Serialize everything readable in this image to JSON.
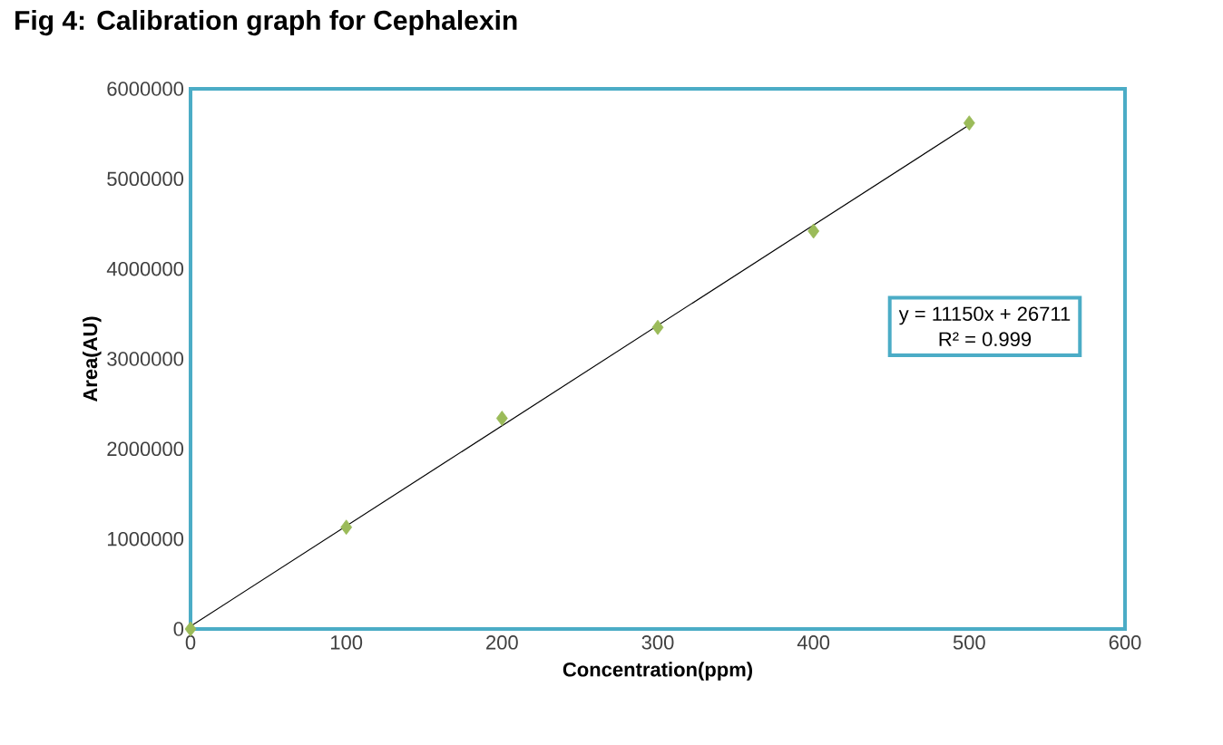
{
  "chart_data": {
    "type": "scatter",
    "title": "Fig 4: Calibration graph for Cephalexin",
    "xlabel": "Concentration(ppm)",
    "ylabel": "Area(AU)",
    "series": [
      {
        "color": "#9bbb59",
        "marker": "diamond",
        "x": [
          0,
          100,
          200,
          300,
          400,
          500
        ],
        "values": [
          0,
          1130000,
          2340000,
          3350000,
          4420000,
          5620000
        ]
      },
      {
        "type": "line",
        "color": "#000000",
        "marker": "none",
        "x": [
          0,
          500
        ],
        "values": [
          30000,
          5600000
        ]
      }
    ],
    "annotations": [
      "y = 11150x + 26711",
      "R² = 0.999"
    ],
    "xlim": [
      0,
      600
    ],
    "xticks": [
      0,
      100,
      200,
      300,
      400,
      500,
      600
    ],
    "ylim": [
      0,
      6000000
    ],
    "yticks": [
      0,
      1000000,
      2000000,
      3000000,
      4000000,
      5000000,
      6000000
    ],
    "grid": false
  }
}
